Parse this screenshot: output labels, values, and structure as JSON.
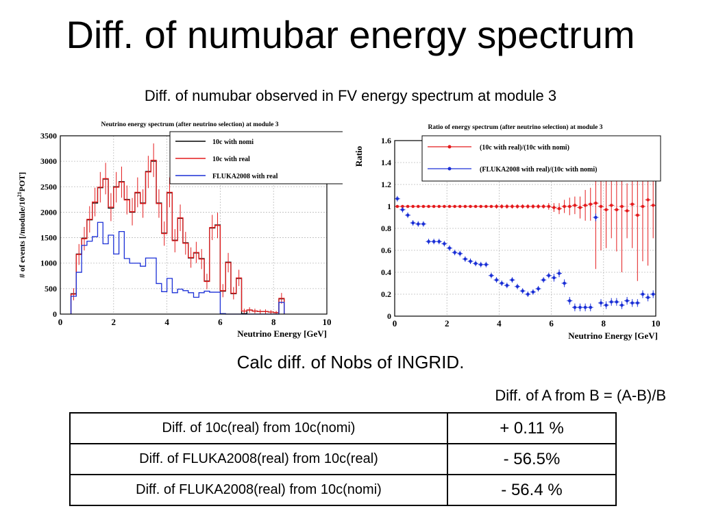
{
  "slide": {
    "title": "Diff. of numubar energy spectrum",
    "subtitle": "Diff. of numubar observed in FV energy spectrum at module 3",
    "calc_text": "Calc diff. of Nobs of  INGRID.",
    "formula": "Diff. of A from B = (A-B)/B"
  },
  "results_table": [
    {
      "label": "Diff. of 10c(real) from 10c(nomi)",
      "value": "+ 0.11 %"
    },
    {
      "label": "Diff. of FLUKA2008(real) from 10c(real)",
      "value": "- 56.5%"
    },
    {
      "label": "Diff. of FLUKA2008(real) from 10c(nomi)",
      "value": "- 56.4 %"
    }
  ],
  "chart_data": [
    {
      "type": "line",
      "title": "Neutrino energy spectrum (after neutrino selection) at module 3",
      "xlabel": "Neutrino Energy [GeV]",
      "ylabel": "# of events [/module/10^21POT]",
      "ylabel_parts": [
        "# of events [/module/10",
        "21",
        "POT]"
      ],
      "xlim": [
        0,
        10
      ],
      "ylim": [
        0,
        3500
      ],
      "x_ticks": [
        0,
        2,
        4,
        6,
        8,
        10
      ],
      "y_ticks": [
        0,
        500,
        1000,
        1500,
        2000,
        2500,
        3000,
        3500
      ],
      "grid": true,
      "legend_position": "top-right",
      "bin_width": 0.2,
      "x_bin_start": 0.4,
      "series": [
        {
          "name": "10c with nomi",
          "color": "#000000",
          "values": [
            400,
            1180,
            1490,
            1850,
            2180,
            2480,
            2650,
            2080,
            2500,
            2600,
            2250,
            2000,
            2380,
            2180,
            2800,
            3000,
            2180,
            1590,
            2380,
            1450,
            1880,
            1400,
            1100,
            1200,
            1090,
            650,
            1690,
            1750,
            450,
            1020,
            400,
            700,
            10,
            80,
            60,
            50,
            50,
            40,
            30,
            300
          ]
        },
        {
          "name": "10c with real",
          "color": "#e41a1c",
          "values": [
            390,
            1170,
            1480,
            1860,
            2200,
            2490,
            2660,
            2100,
            2490,
            2590,
            2240,
            2010,
            2390,
            2170,
            2790,
            3020,
            2170,
            1580,
            2390,
            1440,
            1890,
            1390,
            1110,
            1210,
            1080,
            640,
            1700,
            1740,
            460,
            1010,
            410,
            710,
            60,
            80,
            60,
            50,
            50,
            40,
            30,
            310
          ]
        },
        {
          "name": "FLUKA2008 with real",
          "color": "#1a2fd6",
          "values": [
            350,
            820,
            1350,
            1430,
            1520,
            1800,
            1380,
            1550,
            1180,
            1620,
            1090,
            1000,
            1000,
            940,
            1100,
            1100,
            600,
            440,
            700,
            420,
            490,
            460,
            420,
            330,
            420,
            450,
            430,
            430,
            10,
            0,
            0,
            0,
            0,
            0,
            0,
            0,
            0,
            0,
            0,
            230
          ]
        }
      ]
    },
    {
      "type": "scatter",
      "title": "Ratio of energy spectrum (after neutrino selection) at module 3",
      "xlabel": "Neutrino Energy [GeV]",
      "ylabel": "Ratio",
      "xlim": [
        0,
        10
      ],
      "ylim": [
        0,
        1.6
      ],
      "x_ticks": [
        0,
        2,
        4,
        6,
        8,
        10
      ],
      "y_ticks": [
        0,
        0.2,
        0.4,
        0.6,
        0.8,
        1,
        1.2,
        1.4,
        1.6
      ],
      "y_tick_labels": [
        "0",
        "0.2",
        "0.4",
        "0.6",
        "0.8",
        "1",
        "1.2",
        "1.4",
        "1.6"
      ],
      "grid": true,
      "legend_position": "top-right",
      "series": [
        {
          "name": "(10c with real)/(10c with nomi)",
          "color": "#e41a1c",
          "x": [
            0.1,
            0.3,
            0.5,
            0.7,
            0.9,
            1.1,
            1.3,
            1.5,
            1.7,
            1.9,
            2.1,
            2.3,
            2.5,
            2.7,
            2.9,
            3.1,
            3.3,
            3.5,
            3.7,
            3.9,
            4.1,
            4.3,
            4.5,
            4.7,
            4.9,
            5.1,
            5.3,
            5.5,
            5.7,
            5.9,
            6.1,
            6.3,
            6.5,
            6.7,
            6.9,
            7.1,
            7.3,
            7.5,
            7.7,
            7.9,
            8.1,
            8.3,
            8.5,
            8.7,
            8.9,
            9.1,
            9.3,
            9.5,
            9.7,
            9.9
          ],
          "y": [
            1.0,
            1.0,
            1.0,
            1.0,
            1.0,
            1.0,
            1.0,
            1.0,
            1.0,
            1.0,
            1.0,
            1.0,
            1.0,
            1.0,
            1.0,
            1.0,
            1.0,
            1.0,
            1.0,
            1.0,
            1.0,
            1.0,
            1.0,
            1.0,
            1.0,
            1.0,
            1.0,
            1.0,
            1.0,
            1.0,
            0.99,
            0.98,
            1.0,
            1.0,
            1.01,
            0.99,
            1.01,
            1.02,
            1.03,
            1.0,
            0.97,
            1.01,
            0.97,
            1.0,
            0.96,
            1.02,
            0.92,
            1.0,
            1.06,
            1.01
          ],
          "yerr": [
            0.01,
            0.01,
            0.01,
            0.01,
            0.01,
            0.01,
            0.01,
            0.01,
            0.01,
            0.01,
            0.01,
            0.01,
            0.01,
            0.01,
            0.01,
            0.01,
            0.01,
            0.01,
            0.01,
            0.02,
            0.02,
            0.02,
            0.02,
            0.02,
            0.02,
            0.02,
            0.02,
            0.02,
            0.02,
            0.03,
            0.04,
            0.05,
            0.06,
            0.08,
            0.08,
            0.1,
            0.14,
            0.15,
            0.6,
            0.4,
            0.35,
            0.3,
            0.38,
            0.6,
            0.25,
            0.4,
            0.6,
            0.5,
            0.6,
            0.3
          ]
        },
        {
          "name": "(FLUKA2008 with real)/(10c with nomi)",
          "color": "#1a2fd6",
          "x": [
            0.1,
            0.3,
            0.5,
            0.7,
            0.9,
            1.1,
            1.3,
            1.5,
            1.7,
            1.9,
            2.1,
            2.3,
            2.5,
            2.7,
            2.9,
            3.1,
            3.3,
            3.5,
            3.7,
            3.9,
            4.1,
            4.3,
            4.5,
            4.7,
            4.9,
            5.1,
            5.3,
            5.5,
            5.7,
            5.9,
            6.1,
            6.3,
            6.5,
            6.7,
            6.9,
            7.1,
            7.3,
            7.5,
            7.7,
            7.9,
            8.1,
            8.3,
            8.5,
            8.7,
            8.9,
            9.1,
            9.3,
            9.5,
            9.7,
            9.9
          ],
          "y": [
            1.07,
            0.97,
            0.92,
            0.85,
            0.84,
            0.84,
            0.68,
            0.68,
            0.68,
            0.66,
            0.62,
            0.58,
            0.57,
            0.52,
            0.5,
            0.48,
            0.47,
            0.47,
            0.37,
            0.33,
            0.3,
            0.28,
            0.33,
            0.27,
            0.23,
            0.2,
            0.22,
            0.25,
            0.33,
            0.37,
            0.35,
            0.39,
            0.3,
            0.14,
            0.08,
            0.08,
            0.08,
            0.08,
            0.9,
            0.12,
            0.1,
            0.13,
            0.13,
            0.1,
            0.14,
            0.12,
            0.12,
            0.2,
            0.17,
            0.2
          ]
        }
      ]
    }
  ]
}
